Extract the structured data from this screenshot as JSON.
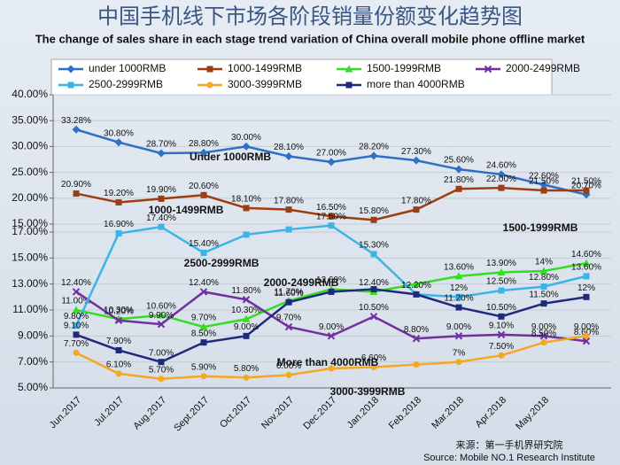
{
  "chart_data": {
    "type": "line",
    "title": "中国手机线下市场各阶段销量份额变化趋势图",
    "subtitle": "The change of sales share in each stage trend variation of China overall mobile phone offline market",
    "categories": [
      "Jun.2017",
      "Jul.2017",
      "Aug.2017",
      "Sept.2017",
      "Oct.2017",
      "Nov.2017",
      "Dec.2017",
      "Jan.2018",
      "Feb.2018",
      "Mar.2018",
      "Apr.2018",
      "May.2018",
      null
    ],
    "ylim": [
      15,
      40
    ],
    "yticks": [
      {
        "value": 15,
        "label": "15.00%"
      },
      {
        "value": 20,
        "label": "20.00%"
      },
      {
        "value": 25,
        "label": "25.00%"
      },
      {
        "value": 30,
        "label": "30.00%"
      },
      {
        "value": 35,
        "label": "35.00%"
      },
      {
        "value": 40,
        "label": "40.00%"
      }
    ],
    "y2lim": [
      5,
      17
    ],
    "y2ticks": [
      {
        "value": 5,
        "label": "5.00%"
      },
      {
        "value": 7,
        "label": "7.00%"
      },
      {
        "value": 9,
        "label": "9.00%"
      },
      {
        "value": 11,
        "label": "11.00%"
      },
      {
        "value": 13,
        "label": "13.00%"
      },
      {
        "value": 15,
        "label": "15.00%"
      },
      {
        "value": 17,
        "label": "17.00%"
      }
    ],
    "grid": true,
    "series": [
      {
        "name": "under 1000RMB",
        "color": "#2f6fc6",
        "marker": "diamond",
        "values": [
          33.28,
          30.8,
          28.7,
          28.8,
          30.0,
          28.1,
          27.0,
          28.2,
          27.3,
          25.6,
          24.6,
          22.6,
          20.7
        ],
        "value_labels": [
          "33.28%",
          "30.80%",
          "28.70%",
          "28.80%",
          "30.00%",
          "28.10%",
          "27.00%",
          "28.20%",
          "27.30%",
          "25.60%",
          "24.60%",
          "22.60%",
          "20.70%"
        ]
      },
      {
        "name": "1000-1499RMB",
        "color": "#9e3d12",
        "marker": "square",
        "values": [
          20.9,
          19.2,
          19.9,
          20.6,
          18.1,
          17.8,
          16.5,
          15.8,
          17.8,
          21.8,
          22.0,
          21.5,
          21.5
        ],
        "value_labels": [
          "20.90%",
          "19.20%",
          "19.90%",
          "20.60%",
          "18.10%",
          "17.80%",
          "16.50%",
          "15.80%",
          "17.80%",
          "21.80%",
          "22.00%",
          "21.50%",
          "21.50%"
        ]
      },
      {
        "name": "1500-1999RMB",
        "color": "#33dd22",
        "marker": "triangle",
        "axis": "y2",
        "values": [
          11.0,
          10.3,
          10.6,
          9.7,
          10.3,
          11.7,
          12.6,
          12.4,
          13.0,
          13.6,
          13.9,
          14.0,
          14.6
        ],
        "value_labels": [
          "11.00%",
          "10.30%",
          "10.60%",
          "9.70%",
          "10.30%",
          "11.70%",
          "12.60%",
          "12.40%",
          null,
          "13.60%",
          "13.90%",
          "14%",
          "14.60%"
        ]
      },
      {
        "name": "2000-2499RMB",
        "color": "#7030a0",
        "marker": "cross",
        "axis": "y2",
        "values": [
          12.4,
          10.2,
          9.9,
          12.4,
          11.8,
          9.7,
          9.0,
          10.5,
          8.8,
          9.0,
          9.1,
          9.0,
          8.6
        ],
        "value_labels": [
          "12.40%",
          "10.20%",
          "9.90%",
          "12.40%",
          "11.80%",
          "9.70%",
          "9.00%",
          "10.50%",
          "8.80%",
          "9.00%",
          "9.10%",
          "9.00%",
          "8.60%"
        ]
      },
      {
        "name": "2500-2999RMB",
        "color": "#3cb4e6",
        "marker": "square",
        "axis": "y2",
        "values": [
          9.8,
          16.9,
          17.4,
          15.4,
          16.8,
          17.2,
          17.5,
          15.3,
          12.2,
          12.0,
          12.5,
          12.8,
          13.6
        ],
        "value_labels": [
          "9.80%",
          "16.90%",
          "17.40%",
          "15.40%",
          null,
          null,
          "17.50%",
          "15.30%",
          null,
          "12%",
          "12.50%",
          "12.80%",
          "13.60%"
        ]
      },
      {
        "name": "3000-3999RMB",
        "color": "#f5a623",
        "marker": "circle",
        "axis": "y2",
        "values": [
          7.7,
          6.1,
          5.7,
          5.9,
          5.8,
          6.0,
          6.5,
          6.6,
          6.8,
          7.0,
          7.5,
          8.5,
          9.0
        ],
        "value_labels": [
          "7.70%",
          "6.10%",
          "5.70%",
          "5.90%",
          "5.80%",
          "6.00%",
          null,
          "6.60%",
          null,
          "7%",
          "7.50%",
          "8.50%",
          "9.00%"
        ]
      },
      {
        "name": "more than 4000RMB",
        "color": "#1f2a7a",
        "marker": "square",
        "axis": "y2",
        "values": [
          9.1,
          7.9,
          7.0,
          8.5,
          9.0,
          11.6,
          12.4,
          12.6,
          12.2,
          11.2,
          10.5,
          11.5,
          12.0
        ],
        "value_labels": [
          "9.10%",
          "7.90%",
          "7.00%",
          "8.50%",
          "9.00%",
          "11.60%",
          null,
          null,
          "12.20%",
          "11.20%",
          "10.50%",
          "11.50%",
          "12%"
        ]
      }
    ],
    "annotations": [
      "Under 1000RMB",
      "1000-1499RMB",
      "1500-1999RMB",
      "2000-2499RMB",
      "2500-2999RMB",
      "More than 4000RMB",
      "3000-3999RMB"
    ],
    "source": [
      "来源：第一手机界研究院",
      "Source: Mobile NO.1 Research Institute"
    ]
  }
}
